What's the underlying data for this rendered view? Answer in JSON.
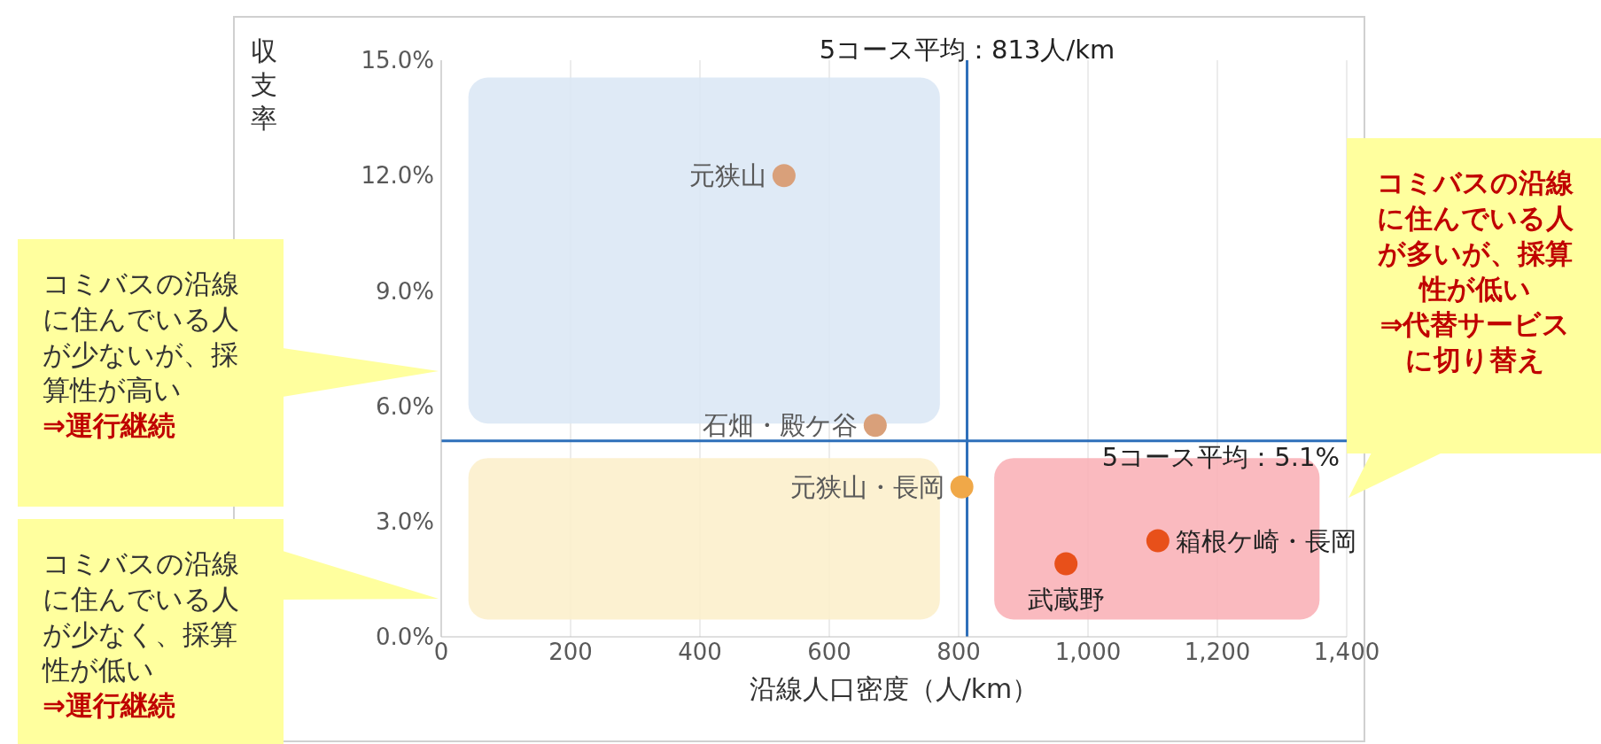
{
  "chart_data": {
    "type": "scatter",
    "xlabel": "沿線人口密度（人/km）",
    "ylabel": "収支率",
    "xlim": [
      0,
      1400
    ],
    "xticks": [
      0,
      200,
      400,
      600,
      800,
      {
        "value": 1000,
        "label": "1,000"
      },
      {
        "value": 1200,
        "label": "1,200"
      },
      {
        "value": 1400,
        "label": "1,400"
      }
    ],
    "ylim": [
      0,
      15
    ],
    "yticks": [
      {
        "value": 0,
        "label": "0.0%"
      },
      {
        "value": 3,
        "label": "3.0%"
      },
      {
        "value": 6,
        "label": "6.0%"
      },
      {
        "value": 9,
        "label": "9.0%"
      },
      {
        "value": 12,
        "label": "12.0%"
      },
      {
        "value": 15,
        "label": "15.0%"
      }
    ],
    "grid": "x",
    "legend": false,
    "marker": "circle",
    "series": [
      {
        "name": "元狭山",
        "color": "#d9a07a",
        "x": [
          530
        ],
        "values": [
          12.0
        ]
      },
      {
        "name": "石畑・殿ケ谷",
        "color": "#d9a07a",
        "x": [
          671
        ],
        "values": [
          5.5
        ]
      },
      {
        "name": "元狭山・長岡",
        "color": "#f0a848",
        "x": [
          805
        ],
        "values": [
          3.9
        ]
      },
      {
        "name": "箱根ケ崎・長岡",
        "color": "#e8501a",
        "x": [
          1108
        ],
        "values": [
          2.5
        ]
      },
      {
        "name": "武蔵野",
        "color": "#e8501a",
        "x": [
          966
        ],
        "values": [
          1.9
        ]
      }
    ],
    "ref_lines": [
      {
        "axis": "x",
        "value": 813,
        "label": "5コース平均：813人/km",
        "color": "#2e6fba"
      },
      {
        "axis": "y",
        "value": 5.1,
        "label": "5コース平均：5.1%",
        "color": "#2e6fba"
      }
    ],
    "annotations": [
      "コミバスの沿線に住んでいる人が少ないが、採算性が高い\n⇒運行継続",
      "コミバスの沿線に住んでいる人が少なく、採算性が低い\n⇒運行継続",
      "コミバスの沿線に住んでいる人が多いが、採算性が低い\n⇒代替サービスに切り替え"
    ]
  }
}
